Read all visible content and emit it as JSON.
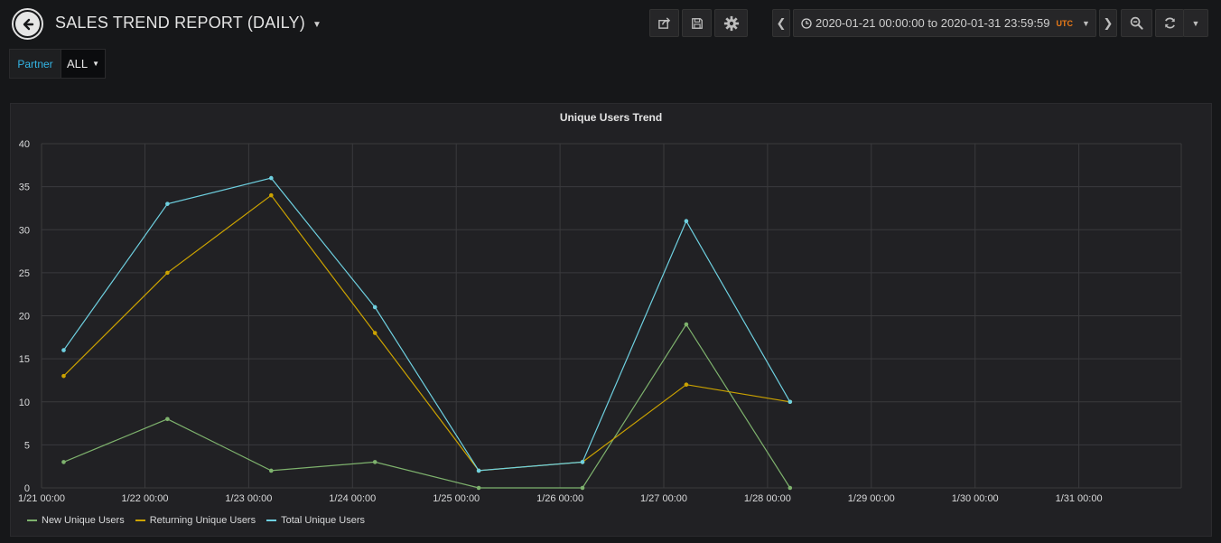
{
  "header": {
    "title": "SALES TREND REPORT (DAILY)",
    "time_range": "2020-01-21 00:00:00 to 2020-01-31 23:59:59",
    "timezone": "UTC"
  },
  "variables": {
    "partner_label": "Partner",
    "partner_value": "ALL"
  },
  "panel": {
    "title": "Unique Users Trend"
  },
  "colors": {
    "new": "#7eb26d",
    "returning": "#cca300",
    "total": "#6ed0e0"
  },
  "chart_data": {
    "type": "line",
    "title": "Unique Users Trend",
    "x_ticks": [
      "1/21 00:00",
      "1/22 00:00",
      "1/23 00:00",
      "1/24 00:00",
      "1/25 00:00",
      "1/26 00:00",
      "1/27 00:00",
      "1/28 00:00",
      "1/29 00:00",
      "1/30 00:00",
      "1/31 00:00"
    ],
    "y_ticks": [
      "0",
      "5",
      "10",
      "15",
      "20",
      "25",
      "30",
      "35",
      "40"
    ],
    "ylim": [
      0,
      40
    ],
    "x": [
      "1/21",
      "1/22",
      "1/23",
      "1/24",
      "1/25",
      "1/26",
      "1/27",
      "1/28"
    ],
    "series": [
      {
        "name": "New Unique Users",
        "color": "#7eb26d",
        "values": [
          3,
          8,
          2,
          3,
          0,
          0,
          19,
          0
        ]
      },
      {
        "name": "Returning Unique Users",
        "color": "#cca300",
        "values": [
          13,
          25,
          34,
          18,
          2,
          3,
          12,
          10
        ]
      },
      {
        "name": "Total Unique Users",
        "color": "#6ed0e0",
        "values": [
          16,
          33,
          36,
          21,
          2,
          3,
          31,
          10
        ]
      }
    ],
    "grid": true,
    "legend": "bottom-left"
  }
}
